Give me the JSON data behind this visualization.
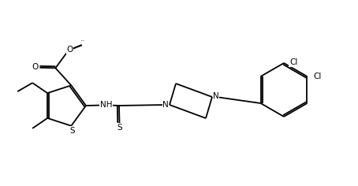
{
  "bg_color": "#ffffff",
  "lw": 1.3,
  "figsize": [
    4.54,
    2.36
  ],
  "dpi": 100,
  "xlim": [
    0,
    4.54
  ],
  "ylim": [
    0,
    2.36
  ]
}
